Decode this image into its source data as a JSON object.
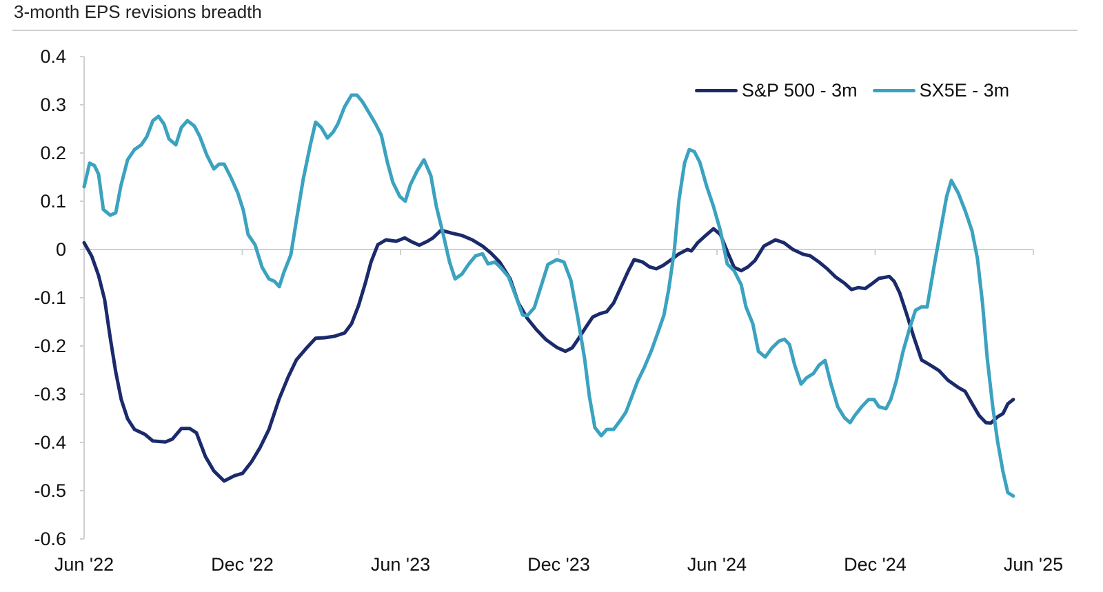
{
  "chart_data": {
    "type": "line",
    "title": "3-month EPS revisions breadth",
    "xlabel": "",
    "ylabel": "",
    "x_unit": "months since Jun '22",
    "xlim": [
      0,
      36
    ],
    "ylim": [
      -0.6,
      0.4
    ],
    "yticks": [
      0.4,
      0.3,
      0.2,
      0.1,
      0,
      -0.1,
      -0.2,
      -0.3,
      -0.4,
      -0.5,
      -0.6
    ],
    "ytick_labels": [
      "0.4",
      "0.3",
      "0.2",
      "0.1",
      "0",
      "-0.1",
      "-0.2",
      "-0.3",
      "-0.4",
      "-0.5",
      "-0.6"
    ],
    "xticks": [
      0,
      6,
      12,
      18,
      24,
      30,
      36
    ],
    "xtick_labels": [
      "Jun '22",
      "Dec '22",
      "Jun '23",
      "Dec '23",
      "Jun '24",
      "Dec '24",
      "Jun '25"
    ],
    "grid": false,
    "legend_position": "top-right",
    "series": [
      {
        "name": "S&P 500 - 3m",
        "color": "#1b2a6b",
        "points": [
          [
            0,
            0.014
          ],
          [
            0.29,
            -0.014
          ],
          [
            0.55,
            -0.054
          ],
          [
            0.78,
            -0.104
          ],
          [
            0.99,
            -0.183
          ],
          [
            1.2,
            -0.254
          ],
          [
            1.41,
            -0.311
          ],
          [
            1.65,
            -0.351
          ],
          [
            1.91,
            -0.373
          ],
          [
            2.3,
            -0.383
          ],
          [
            2.61,
            -0.397
          ],
          [
            3.08,
            -0.399
          ],
          [
            3.35,
            -0.393
          ],
          [
            3.69,
            -0.371
          ],
          [
            4.0,
            -0.371
          ],
          [
            4.26,
            -0.38
          ],
          [
            4.6,
            -0.429
          ],
          [
            4.92,
            -0.459
          ],
          [
            5.31,
            -0.48
          ],
          [
            5.7,
            -0.469
          ],
          [
            6.01,
            -0.464
          ],
          [
            6.35,
            -0.44
          ],
          [
            6.67,
            -0.411
          ],
          [
            7.01,
            -0.373
          ],
          [
            7.4,
            -0.309
          ],
          [
            7.74,
            -0.264
          ],
          [
            8.05,
            -0.229
          ],
          [
            8.44,
            -0.204
          ],
          [
            8.78,
            -0.184
          ],
          [
            9.1,
            -0.183
          ],
          [
            9.49,
            -0.18
          ],
          [
            9.88,
            -0.173
          ],
          [
            10.14,
            -0.154
          ],
          [
            10.41,
            -0.116
          ],
          [
            10.67,
            -0.069
          ],
          [
            10.88,
            -0.026
          ],
          [
            11.14,
            0.01
          ],
          [
            11.45,
            0.02
          ],
          [
            11.84,
            0.017
          ],
          [
            12.16,
            0.024
          ],
          [
            12.42,
            0.016
          ],
          [
            12.71,
            0.009
          ],
          [
            13.02,
            0.017
          ],
          [
            13.23,
            0.024
          ],
          [
            13.54,
            0.04
          ],
          [
            13.93,
            0.034
          ],
          [
            14.33,
            0.029
          ],
          [
            14.72,
            0.02
          ],
          [
            15.11,
            0.007
          ],
          [
            15.42,
            -0.007
          ],
          [
            15.76,
            -0.026
          ],
          [
            16.16,
            -0.061
          ],
          [
            16.47,
            -0.111
          ],
          [
            16.81,
            -0.143
          ],
          [
            17.15,
            -0.166
          ],
          [
            17.52,
            -0.187
          ],
          [
            17.93,
            -0.203
          ],
          [
            18.25,
            -0.211
          ],
          [
            18.51,
            -0.204
          ],
          [
            18.77,
            -0.183
          ],
          [
            19.03,
            -0.161
          ],
          [
            19.29,
            -0.14
          ],
          [
            19.56,
            -0.133
          ],
          [
            19.82,
            -0.129
          ],
          [
            20.08,
            -0.111
          ],
          [
            20.34,
            -0.08
          ],
          [
            20.65,
            -0.043
          ],
          [
            20.86,
            -0.021
          ],
          [
            21.18,
            -0.026
          ],
          [
            21.44,
            -0.036
          ],
          [
            21.7,
            -0.04
          ],
          [
            21.96,
            -0.033
          ],
          [
            22.22,
            -0.023
          ],
          [
            22.56,
            -0.009
          ],
          [
            22.88,
            0
          ],
          [
            23.03,
            -0.003
          ],
          [
            23.27,
            0.014
          ],
          [
            23.53,
            0.027
          ],
          [
            23.87,
            0.043
          ],
          [
            24.13,
            0.031
          ],
          [
            24.39,
            -0.004
          ],
          [
            24.65,
            -0.037
          ],
          [
            24.92,
            -0.044
          ],
          [
            25.18,
            -0.036
          ],
          [
            25.44,
            -0.023
          ],
          [
            25.78,
            0.007
          ],
          [
            26.22,
            0.02
          ],
          [
            26.54,
            0.014
          ],
          [
            26.88,
            0
          ],
          [
            27.27,
            -0.01
          ],
          [
            27.53,
            -0.013
          ],
          [
            27.87,
            -0.026
          ],
          [
            28.18,
            -0.04
          ],
          [
            28.5,
            -0.057
          ],
          [
            28.84,
            -0.07
          ],
          [
            29.1,
            -0.083
          ],
          [
            29.36,
            -0.079
          ],
          [
            29.62,
            -0.081
          ],
          [
            29.88,
            -0.071
          ],
          [
            30.14,
            -0.06
          ],
          [
            30.54,
            -0.056
          ],
          [
            30.72,
            -0.066
          ],
          [
            30.93,
            -0.09
          ],
          [
            31.19,
            -0.133
          ],
          [
            31.45,
            -0.179
          ],
          [
            31.76,
            -0.229
          ],
          [
            32.1,
            -0.24
          ],
          [
            32.42,
            -0.251
          ],
          [
            32.76,
            -0.271
          ],
          [
            33.15,
            -0.286
          ],
          [
            33.41,
            -0.294
          ],
          [
            33.67,
            -0.319
          ],
          [
            33.94,
            -0.344
          ],
          [
            34.2,
            -0.359
          ],
          [
            34.38,
            -0.36
          ],
          [
            34.64,
            -0.347
          ],
          [
            34.85,
            -0.34
          ],
          [
            35.03,
            -0.32
          ],
          [
            35.24,
            -0.311
          ]
        ]
      },
      {
        "name": "SX5E - 3m",
        "color": "#3ba2c0",
        "points": [
          [
            0,
            0.13
          ],
          [
            0.21,
            0.179
          ],
          [
            0.39,
            0.174
          ],
          [
            0.55,
            0.156
          ],
          [
            0.73,
            0.083
          ],
          [
            0.99,
            0.071
          ],
          [
            1.2,
            0.076
          ],
          [
            1.39,
            0.131
          ],
          [
            1.65,
            0.186
          ],
          [
            1.91,
            0.207
          ],
          [
            2.17,
            0.217
          ],
          [
            2.38,
            0.234
          ],
          [
            2.61,
            0.267
          ],
          [
            2.82,
            0.276
          ],
          [
            3.03,
            0.26
          ],
          [
            3.22,
            0.229
          ],
          [
            3.48,
            0.217
          ],
          [
            3.69,
            0.253
          ],
          [
            3.92,
            0.267
          ],
          [
            4.18,
            0.256
          ],
          [
            4.39,
            0.234
          ],
          [
            4.65,
            0.196
          ],
          [
            4.92,
            0.167
          ],
          [
            5.12,
            0.177
          ],
          [
            5.31,
            0.177
          ],
          [
            5.57,
            0.149
          ],
          [
            5.83,
            0.117
          ],
          [
            6.04,
            0.081
          ],
          [
            6.22,
            0.031
          ],
          [
            6.48,
            0.01
          ],
          [
            6.75,
            -0.037
          ],
          [
            7.01,
            -0.061
          ],
          [
            7.22,
            -0.066
          ],
          [
            7.4,
            -0.077
          ],
          [
            7.58,
            -0.047
          ],
          [
            7.84,
            -0.011
          ],
          [
            8.05,
            0.06
          ],
          [
            8.31,
            0.146
          ],
          [
            8.58,
            0.217
          ],
          [
            8.78,
            0.264
          ],
          [
            8.99,
            0.253
          ],
          [
            9.23,
            0.231
          ],
          [
            9.44,
            0.243
          ],
          [
            9.62,
            0.26
          ],
          [
            9.88,
            0.296
          ],
          [
            10.14,
            0.32
          ],
          [
            10.35,
            0.32
          ],
          [
            10.56,
            0.306
          ],
          [
            10.8,
            0.284
          ],
          [
            11.06,
            0.26
          ],
          [
            11.27,
            0.237
          ],
          [
            11.5,
            0.181
          ],
          [
            11.71,
            0.139
          ],
          [
            11.97,
            0.11
          ],
          [
            12.18,
            0.1
          ],
          [
            12.37,
            0.134
          ],
          [
            12.63,
            0.163
          ],
          [
            12.89,
            0.186
          ],
          [
            13.15,
            0.153
          ],
          [
            13.36,
            0.089
          ],
          [
            13.62,
            0.031
          ],
          [
            13.86,
            -0.026
          ],
          [
            14.07,
            -0.061
          ],
          [
            14.33,
            -0.051
          ],
          [
            14.59,
            -0.03
          ],
          [
            14.85,
            -0.013
          ],
          [
            15.11,
            -0.009
          ],
          [
            15.32,
            -0.03
          ],
          [
            15.58,
            -0.026
          ],
          [
            15.79,
            -0.037
          ],
          [
            16.1,
            -0.057
          ],
          [
            16.37,
            -0.097
          ],
          [
            16.63,
            -0.136
          ],
          [
            16.81,
            -0.137
          ],
          [
            17.07,
            -0.121
          ],
          [
            17.33,
            -0.076
          ],
          [
            17.59,
            -0.031
          ],
          [
            17.93,
            -0.021
          ],
          [
            18.2,
            -0.026
          ],
          [
            18.46,
            -0.064
          ],
          [
            18.72,
            -0.14
          ],
          [
            18.98,
            -0.226
          ],
          [
            19.16,
            -0.304
          ],
          [
            19.37,
            -0.369
          ],
          [
            19.61,
            -0.386
          ],
          [
            19.82,
            -0.373
          ],
          [
            20.08,
            -0.373
          ],
          [
            20.34,
            -0.354
          ],
          [
            20.55,
            -0.337
          ],
          [
            20.73,
            -0.311
          ],
          [
            20.99,
            -0.273
          ],
          [
            21.25,
            -0.244
          ],
          [
            21.52,
            -0.209
          ],
          [
            21.78,
            -0.169
          ],
          [
            21.99,
            -0.136
          ],
          [
            22.17,
            -0.083
          ],
          [
            22.38,
            -0.004
          ],
          [
            22.56,
            0.103
          ],
          [
            22.77,
            0.179
          ],
          [
            22.95,
            0.207
          ],
          [
            23.14,
            0.203
          ],
          [
            23.35,
            0.181
          ],
          [
            23.61,
            0.131
          ],
          [
            23.87,
            0.089
          ],
          [
            24.13,
            0.039
          ],
          [
            24.39,
            -0.03
          ],
          [
            24.65,
            -0.044
          ],
          [
            24.92,
            -0.073
          ],
          [
            25.1,
            -0.119
          ],
          [
            25.36,
            -0.154
          ],
          [
            25.57,
            -0.211
          ],
          [
            25.83,
            -0.223
          ],
          [
            26.09,
            -0.204
          ],
          [
            26.35,
            -0.19
          ],
          [
            26.56,
            -0.186
          ],
          [
            26.75,
            -0.197
          ],
          [
            26.95,
            -0.24
          ],
          [
            27.19,
            -0.279
          ],
          [
            27.4,
            -0.266
          ],
          [
            27.66,
            -0.257
          ],
          [
            27.87,
            -0.24
          ],
          [
            28.1,
            -0.23
          ],
          [
            28.31,
            -0.276
          ],
          [
            28.58,
            -0.326
          ],
          [
            28.84,
            -0.349
          ],
          [
            29.05,
            -0.359
          ],
          [
            29.23,
            -0.344
          ],
          [
            29.49,
            -0.326
          ],
          [
            29.75,
            -0.311
          ],
          [
            29.96,
            -0.311
          ],
          [
            30.14,
            -0.326
          ],
          [
            30.41,
            -0.33
          ],
          [
            30.59,
            -0.311
          ],
          [
            30.8,
            -0.273
          ],
          [
            31.06,
            -0.211
          ],
          [
            31.32,
            -0.161
          ],
          [
            31.53,
            -0.126
          ],
          [
            31.76,
            -0.119
          ],
          [
            31.97,
            -0.119
          ],
          [
            32.24,
            -0.033
          ],
          [
            32.5,
            0.046
          ],
          [
            32.71,
            0.11
          ],
          [
            32.89,
            0.143
          ],
          [
            33.15,
            0.117
          ],
          [
            33.41,
            0.081
          ],
          [
            33.67,
            0.039
          ],
          [
            33.88,
            -0.019
          ],
          [
            34.07,
            -0.111
          ],
          [
            34.25,
            -0.226
          ],
          [
            34.46,
            -0.326
          ],
          [
            34.64,
            -0.397
          ],
          [
            34.85,
            -0.461
          ],
          [
            35.03,
            -0.504
          ],
          [
            35.24,
            -0.511
          ]
        ]
      }
    ]
  }
}
